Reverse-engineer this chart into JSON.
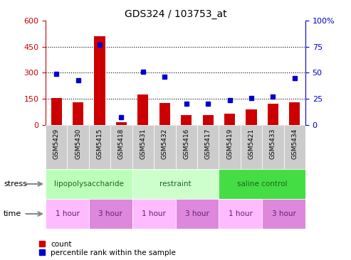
{
  "title": "GDS324 / 103753_at",
  "samples": [
    "GSM5429",
    "GSM5430",
    "GSM5415",
    "GSM5418",
    "GSM5431",
    "GSM5432",
    "GSM5416",
    "GSM5417",
    "GSM5419",
    "GSM5421",
    "GSM5433",
    "GSM5434"
  ],
  "counts": [
    155,
    130,
    510,
    15,
    175,
    125,
    55,
    55,
    65,
    90,
    120,
    130
  ],
  "percentiles": [
    49,
    43,
    77,
    7,
    51,
    46,
    20,
    20,
    24,
    26,
    27,
    45
  ],
  "count_color": "#cc0000",
  "percentile_color": "#0000cc",
  "ylim_left": [
    0,
    600
  ],
  "ylim_right": [
    0,
    100
  ],
  "yticks_left": [
    0,
    150,
    300,
    450,
    600
  ],
  "yticks_right": [
    0,
    25,
    50,
    75,
    100
  ],
  "ytick_labels_right": [
    "0",
    "25",
    "50",
    "75",
    "100%"
  ],
  "stress_groups": [
    {
      "label": "lipopolysaccharide",
      "start": 0,
      "end": 4,
      "color": "#bbffbb"
    },
    {
      "label": "restraint",
      "start": 4,
      "end": 8,
      "color": "#ccffcc"
    },
    {
      "label": "saline control",
      "start": 8,
      "end": 12,
      "color": "#44dd44"
    }
  ],
  "time_groups": [
    {
      "label": "1 hour",
      "start": 0,
      "end": 2,
      "color": "#ffbbff"
    },
    {
      "label": "3 hour",
      "start": 2,
      "end": 4,
      "color": "#dd88dd"
    },
    {
      "label": "1 hour",
      "start": 4,
      "end": 6,
      "color": "#ffbbff"
    },
    {
      "label": "3 hour",
      "start": 6,
      "end": 8,
      "color": "#dd88dd"
    },
    {
      "label": "1 hour",
      "start": 8,
      "end": 10,
      "color": "#ffbbff"
    },
    {
      "label": "3 hour",
      "start": 10,
      "end": 12,
      "color": "#dd88dd"
    }
  ],
  "bar_width": 0.5,
  "marker_size": 5,
  "stress_label_color": "#226622",
  "time_label_color": "#662266",
  "tick_bg_color": "#cccccc",
  "legend_count_label": "count",
  "legend_pct_label": "percentile rank within the sample",
  "fig_width": 4.93,
  "fig_height": 3.66,
  "dpi": 100
}
